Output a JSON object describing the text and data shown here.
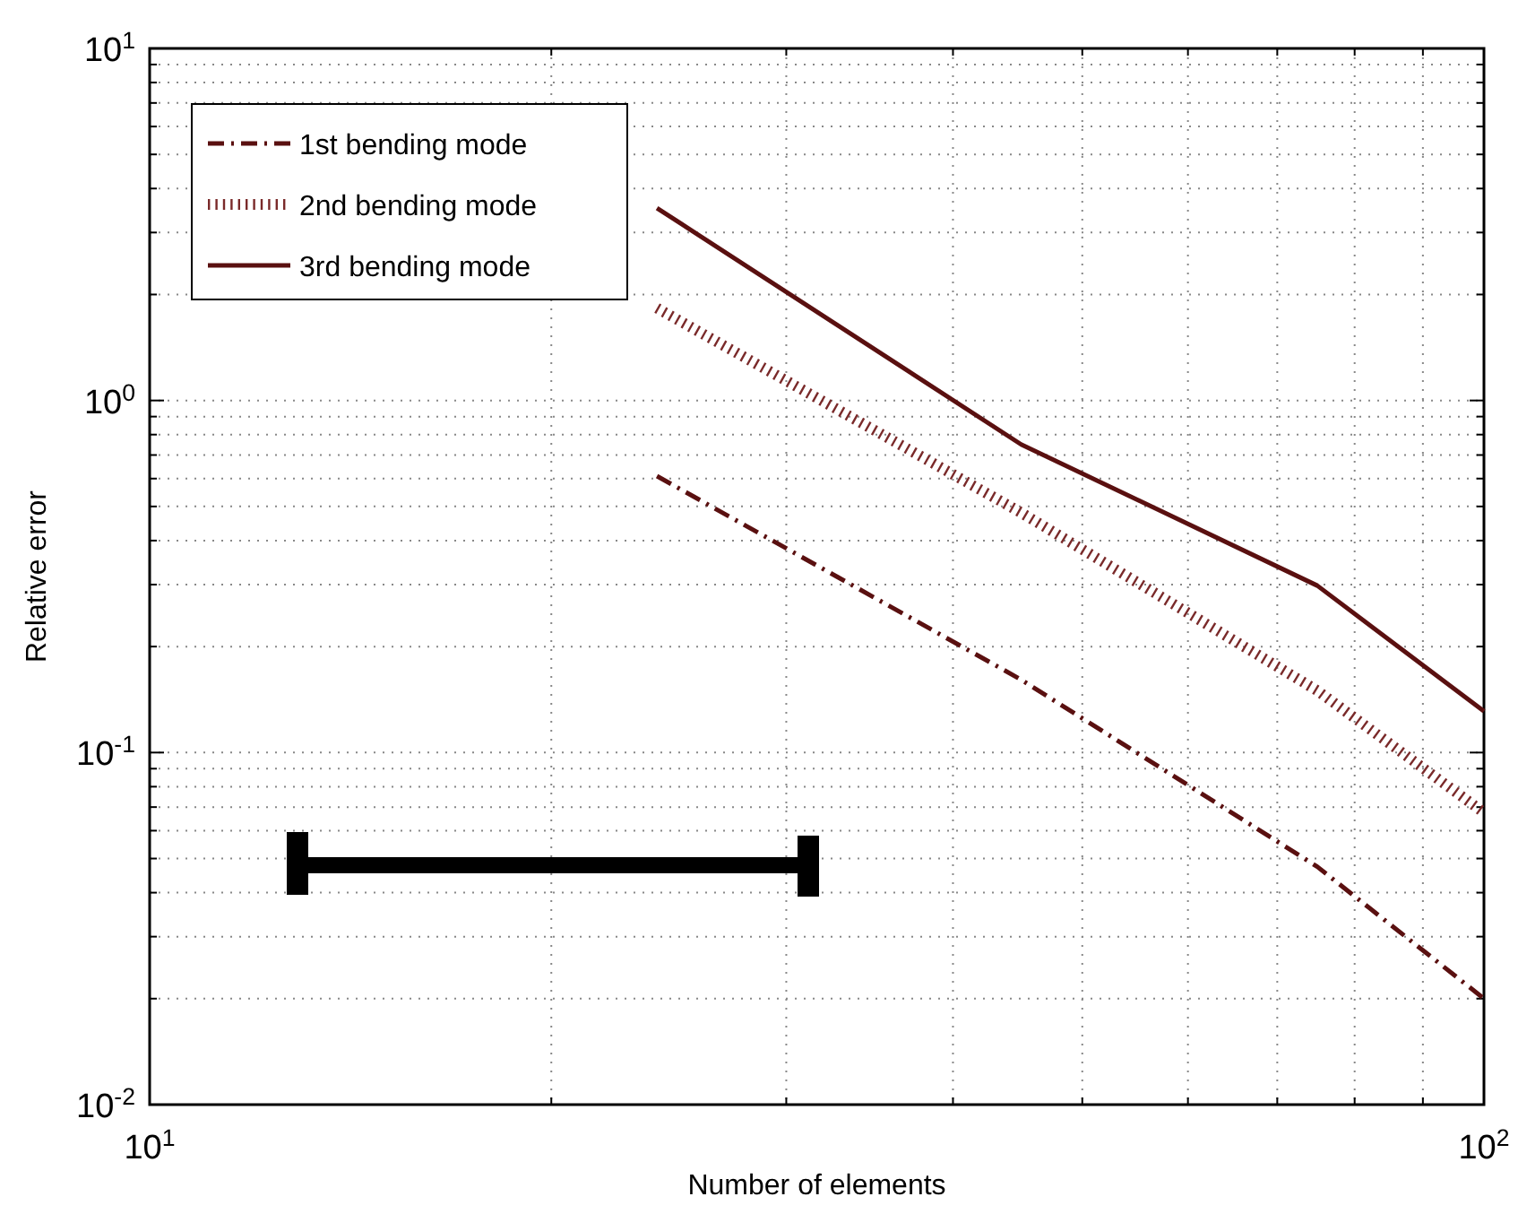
{
  "chart_data": {
    "type": "line",
    "xlabel": "Number of elements",
    "ylabel": "Relative error",
    "log": "xy",
    "grid": true,
    "legend": "top left",
    "xlim": [
      10,
      100
    ],
    "ylim": [
      0.01,
      10
    ],
    "xticks": [
      {
        "value": 10,
        "label": "10$^{1}$"
      },
      {
        "value": 20,
        "label": null
      },
      {
        "value": 30,
        "label": null
      },
      {
        "value": 40,
        "label": null
      },
      {
        "value": 50,
        "label": null
      },
      {
        "value": 60,
        "label": null
      },
      {
        "value": 70,
        "label": null
      },
      {
        "value": 80,
        "label": null
      },
      {
        "value": 90,
        "label": null
      },
      {
        "value": 100,
        "label": "10$^{2}$"
      }
    ],
    "yticks": [
      {
        "value": 0.01,
        "label": "10$^{-2}$"
      },
      {
        "value": 0.02,
        "label": null
      },
      {
        "value": 0.03,
        "label": null
      },
      {
        "value": 0.04,
        "label": null
      },
      {
        "value": 0.05,
        "label": null
      },
      {
        "value": 0.06,
        "label": null
      },
      {
        "value": 0.07,
        "label": null
      },
      {
        "value": 0.08,
        "label": null
      },
      {
        "value": 0.09,
        "label": null
      },
      {
        "value": 0.1,
        "label": "10$^{-1}$"
      },
      {
        "value": 0.2,
        "label": null
      },
      {
        "value": 0.3,
        "label": null
      },
      {
        "value": 0.4,
        "label": null
      },
      {
        "value": 0.5,
        "label": null
      },
      {
        "value": 0.6,
        "label": null
      },
      {
        "value": 0.7,
        "label": null
      },
      {
        "value": 0.8,
        "label": null
      },
      {
        "value": 0.9,
        "label": null
      },
      {
        "value": 1,
        "label": "10$^{0}$"
      },
      {
        "value": 2,
        "label": null
      },
      {
        "value": 3,
        "label": null
      },
      {
        "value": 4,
        "label": null
      },
      {
        "value": 5,
        "label": null
      },
      {
        "value": 6,
        "label": null
      },
      {
        "value": 7,
        "label": null
      },
      {
        "value": 8,
        "label": null
      },
      {
        "value": 9,
        "label": null
      },
      {
        "value": 10,
        "label": "10$^{1}$"
      }
    ],
    "series": [
      {
        "name": "1st bending mode",
        "color": "#5a1010",
        "line_style": "dashed",
        "x": [
          24,
          45,
          75,
          100
        ],
        "values": [
          0.61,
          0.161,
          0.0474,
          0.02
        ]
      },
      {
        "name": "2nd bending mode",
        "color": "#7a2a2a",
        "line_style": "dotted",
        "x": [
          24,
          45,
          75,
          100
        ],
        "values": [
          1.83,
          0.48,
          0.15,
          0.0675
        ]
      },
      {
        "name": "3rd bending mode",
        "color": "#5a1010",
        "line_style": "solid",
        "x": [
          24,
          45,
          75,
          100
        ],
        "values": [
          3.52,
          0.75,
          0.298,
          0.131
        ]
      }
    ]
  }
}
